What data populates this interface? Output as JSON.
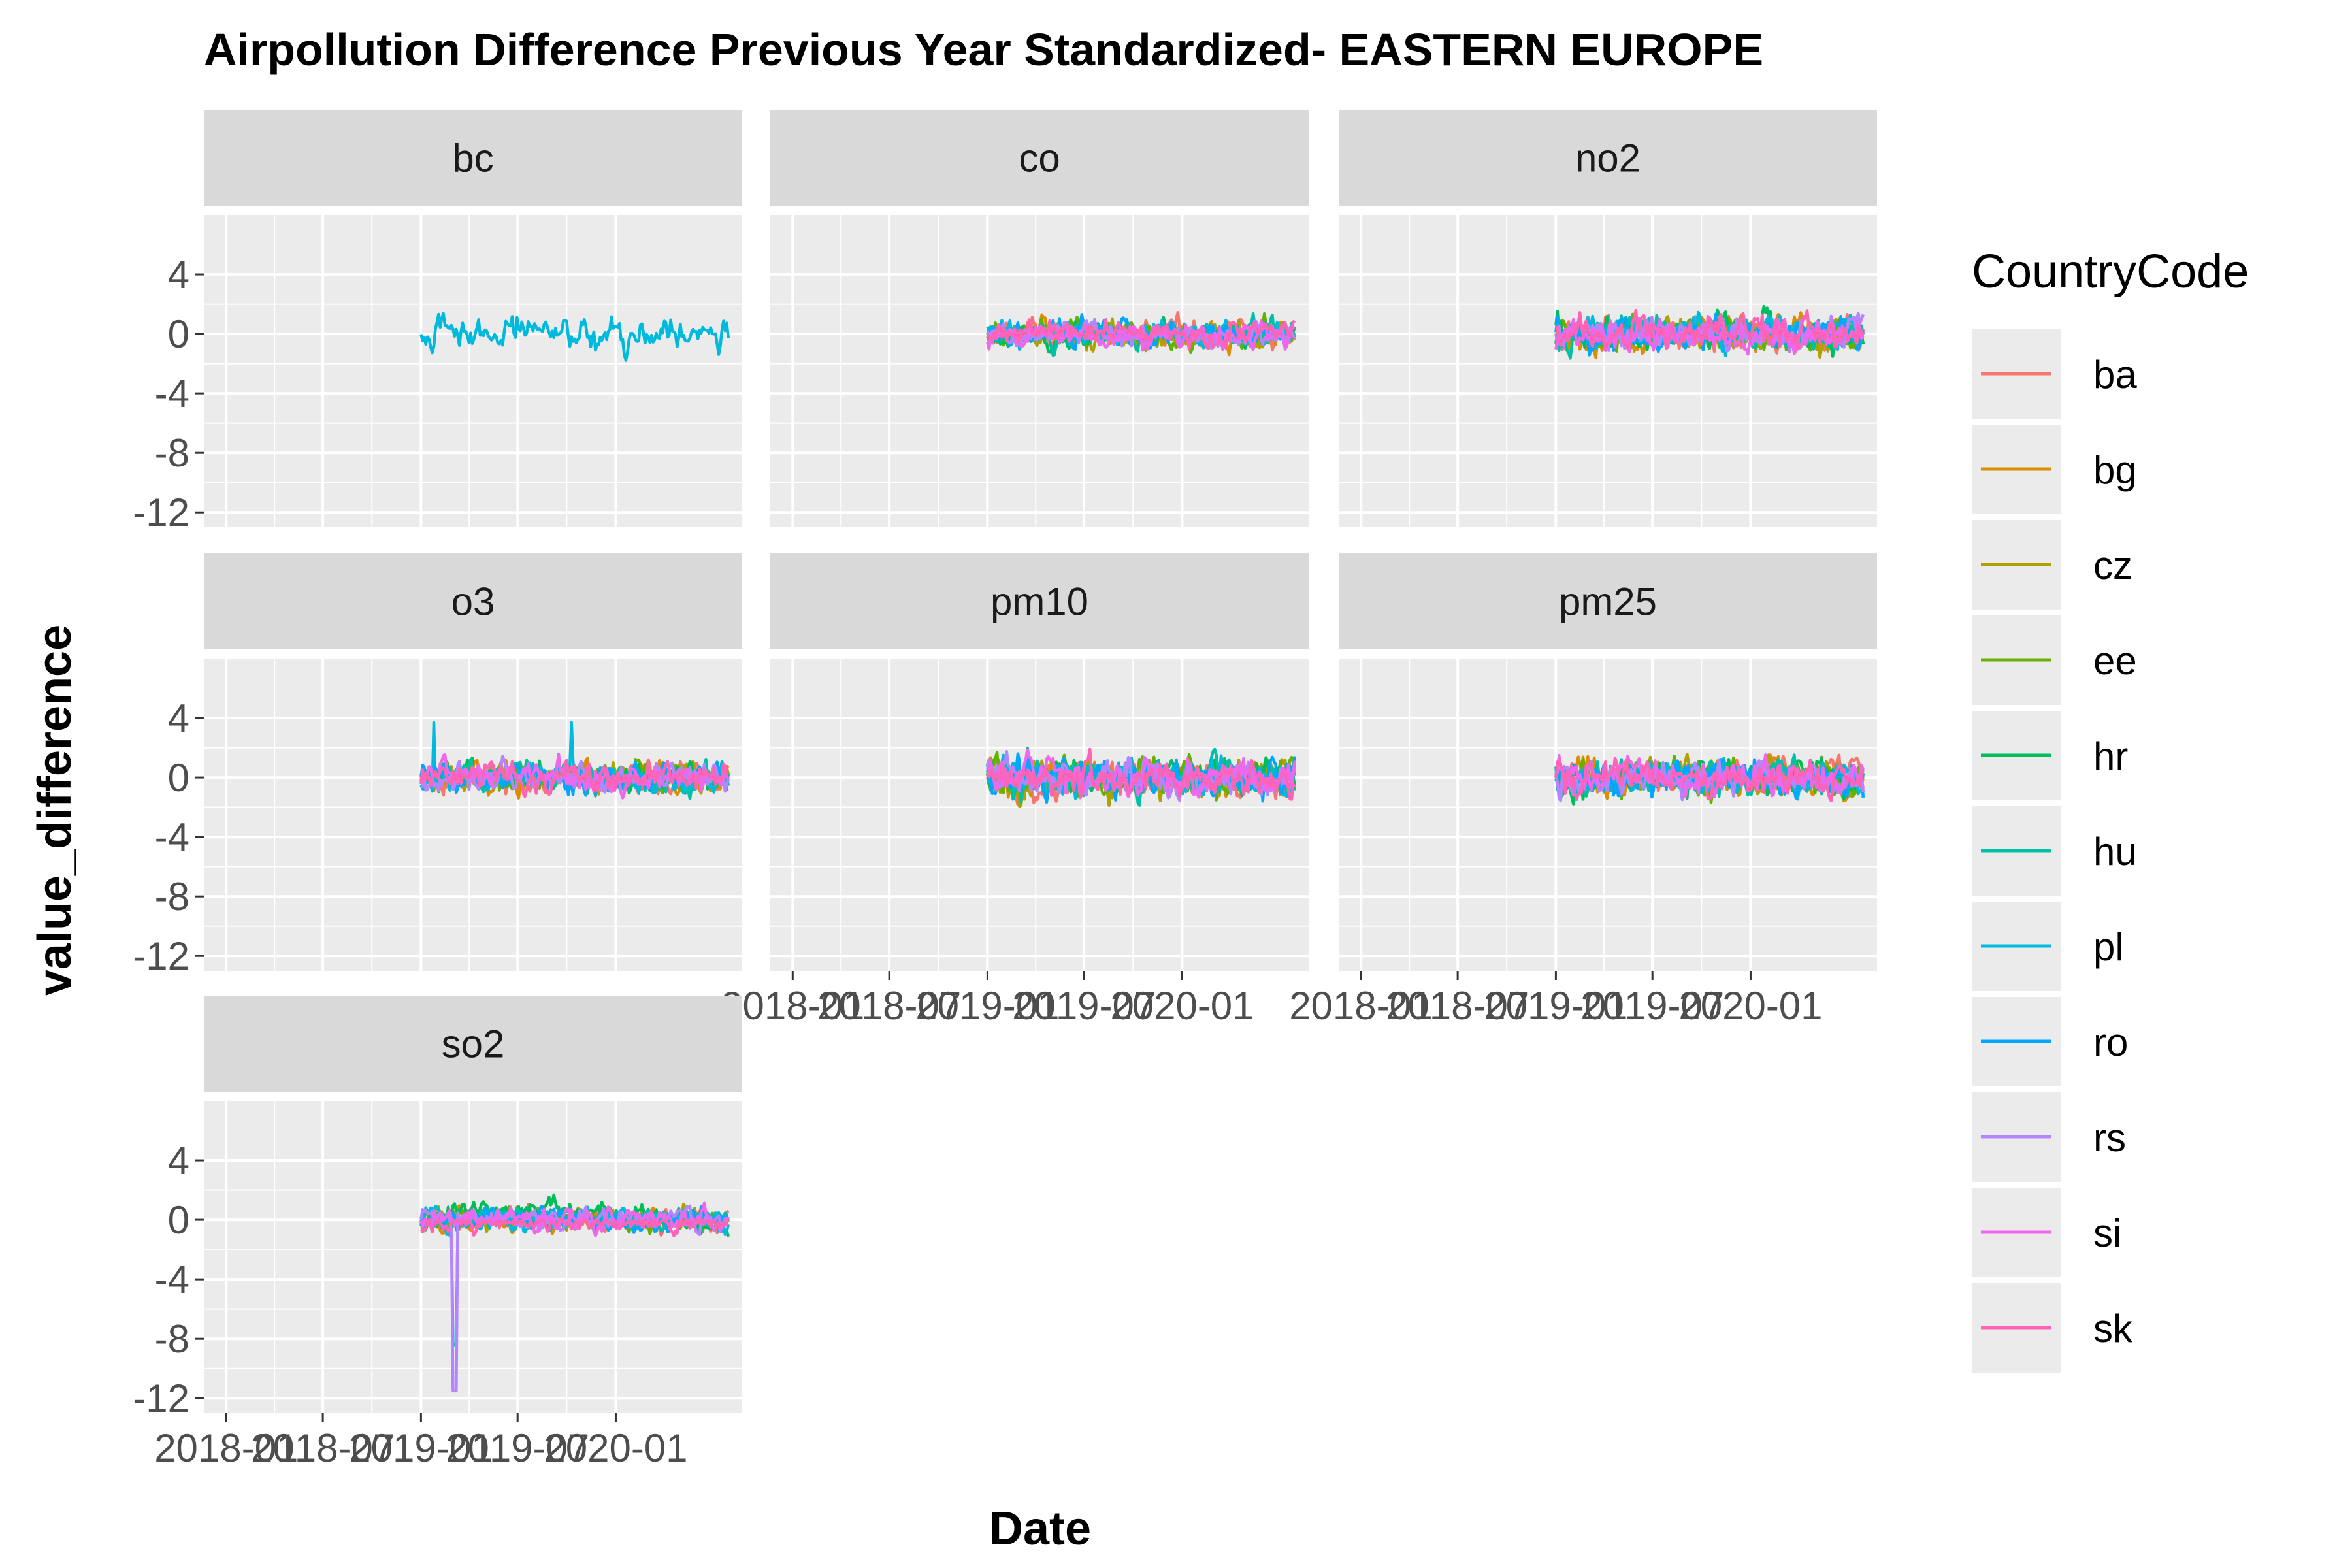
{
  "chart_data": {
    "type": "line",
    "title": "Airpollution Difference Previous Year Standardized- EASTERN EUROPE",
    "xlabel": "Date",
    "ylabel": "value_difference",
    "ylim": [
      -13,
      8
    ],
    "y_ticks": [
      4,
      0,
      -4,
      -8,
      -12
    ],
    "y_tick_labels": [
      "4",
      "0",
      "-4",
      "-8",
      "-12"
    ],
    "xlim": [
      "2017-11-20",
      "2020-08-25"
    ],
    "x_ticks": [
      "2018-01",
      "2018-07",
      "2019-01",
      "2019-07",
      "2020-01"
    ],
    "x_tick_labels": [
      "2018-01",
      "2018-07",
      "2019-01",
      "2019-07",
      "2020-01"
    ],
    "grid": true,
    "facet_variable": "parameter",
    "panels": [
      "bc",
      "co",
      "no2",
      "o3",
      "pm10",
      "pm25",
      "so2"
    ],
    "legend": {
      "title": "CountryCode",
      "position": "right",
      "entries": [
        "ba",
        "bg",
        "cz",
        "ee",
        "hr",
        "hu",
        "pl",
        "ro",
        "rs",
        "si",
        "sk"
      ],
      "colors": [
        "#F8766D",
        "#DB8E00",
        "#AEA200",
        "#64B200",
        "#00BD5C",
        "#00C1A7",
        "#00BADE",
        "#00A6FF",
        "#B385FF",
        "#EF67EB",
        "#FF63B6"
      ]
    },
    "series": [
      {
        "panel": "bc",
        "country": "pl",
        "x_start": "2019-01-01",
        "x_end": "2020-07-31",
        "approx_range": [
          -2.6,
          1.7
        ]
      },
      {
        "panel": "co",
        "country": "sk",
        "x_start": "2019-01-01",
        "x_end": "2020-07-31",
        "approx_range": [
          -3.8,
          2.3
        ]
      },
      {
        "panel": "no2",
        "country": "sk",
        "x_start": "2019-01-01",
        "x_end": "2020-07-31",
        "approx_range": [
          -3.2,
          2.6
        ]
      },
      {
        "panel": "o3",
        "country": "pl",
        "x_start": "2019-01-01",
        "x_end": "2020-07-31",
        "approx_range": [
          -1.8,
          3.9
        ]
      },
      {
        "panel": "pm10",
        "country": "sk",
        "x_start": "2019-01-01",
        "x_end": "2020-07-31",
        "approx_range": [
          -2.8,
          3.1
        ]
      },
      {
        "panel": "pm25",
        "country": "sk",
        "x_start": "2019-01-01",
        "x_end": "2020-07-31",
        "approx_range": [
          -2.5,
          2.9
        ]
      },
      {
        "panel": "so2",
        "country": "rs",
        "x_start": "2019-01-01",
        "x_end": "2020-07-31",
        "approx_range": [
          -11.5,
          3.3
        ]
      }
    ],
    "annotations": []
  }
}
